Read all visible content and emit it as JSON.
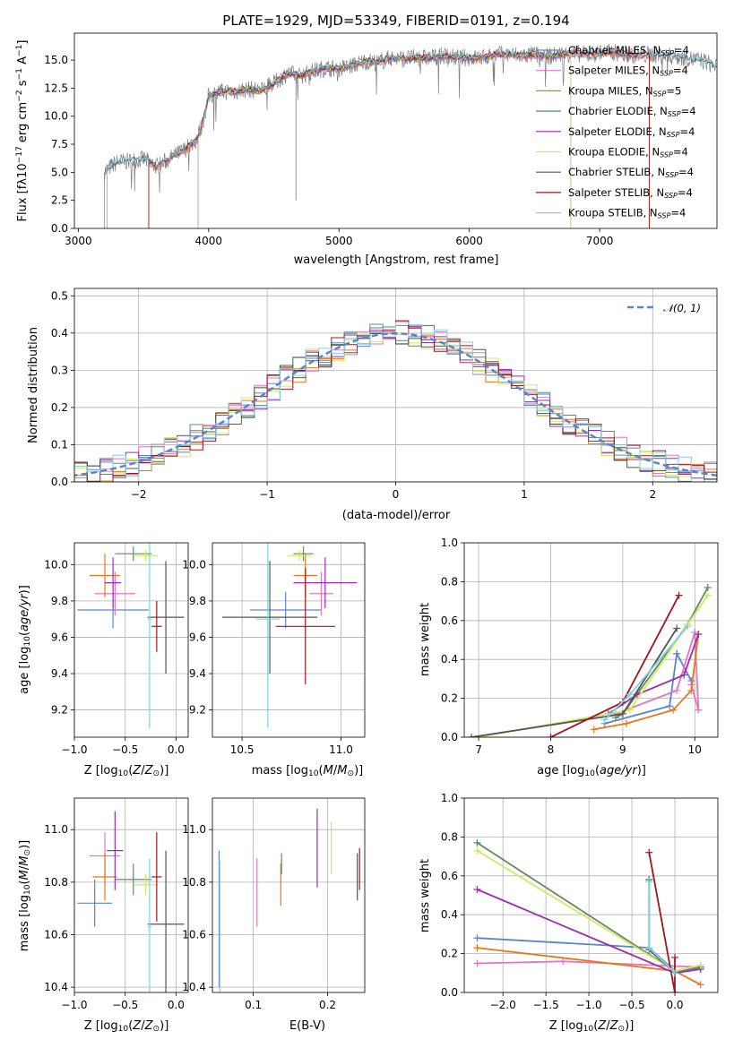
{
  "colors": {
    "chabrier_miles": "#5b84cf",
    "salpeter_miles": "#e377c2",
    "kroupa_miles": "#e5781b",
    "chabrier_elodie": "#5e8a68",
    "salpeter_elodie": "#9b2cb5",
    "kroupa_elodie": "#d4e85a",
    "chabrier_stelib": "#555555",
    "salpeter_stelib": "#a3141c",
    "kroupa_stelib": "#7ed3e3",
    "data_spectrum": "#808080"
  },
  "chart_data": [
    {
      "type": "line",
      "title": "PLATE=1929, MJD=53349, FIBERID=0191, z=0.194",
      "xlabel": "wavelength [Angstrom, rest frame]",
      "ylabel": "Flux [fλ10⁻¹⁷ erg cm⁻² s⁻¹ A⁻¹]",
      "xlim": [
        2970,
        7900
      ],
      "ylim": [
        0,
        17.4
      ],
      "xticks": [
        3000,
        4000,
        5000,
        6000,
        7000
      ],
      "yticks": [
        0.0,
        2.5,
        5.0,
        7.5,
        10.0,
        12.5,
        15.0
      ],
      "legend": "top-right",
      "continuum": {
        "x": [
          3200,
          3250,
          3300,
          3400,
          3500,
          3600,
          3700,
          3800,
          3900,
          3950,
          4000,
          4100,
          4200,
          4300,
          4400,
          4500,
          4600,
          4700,
          4800,
          4900,
          5000,
          5100,
          5200,
          5300,
          5400,
          5500,
          5600,
          5700,
          5800,
          5900,
          6000,
          6100,
          6200,
          6300,
          6400,
          6500,
          6600,
          6700,
          6800,
          6900,
          7000,
          7100,
          7200,
          7300,
          7400,
          7500,
          7600,
          7700,
          7800,
          7900
        ],
        "y": [
          5.0,
          5.5,
          5.9,
          6.0,
          6.2,
          5.5,
          6.2,
          6.9,
          7.8,
          9.2,
          11.8,
          12.2,
          12.2,
          12.4,
          12.3,
          12.9,
          13.8,
          13.6,
          14.0,
          14.3,
          14.2,
          14.5,
          14.9,
          14.8,
          15.2,
          15.1,
          15.2,
          15.2,
          15.4,
          15.2,
          15.2,
          15.2,
          15.5,
          15.5,
          15.4,
          15.5,
          15.3,
          15.5,
          15.6,
          15.5,
          15.6,
          15.7,
          15.5,
          15.4,
          15.5,
          15.4,
          15.3,
          15.1,
          14.9,
          14.4
        ]
      },
      "series": [
        {
          "name": "Chabrier MILES, NSSP=4",
          "start": 3540,
          "end": 7380
        },
        {
          "name": "Salpeter MILES, NSSP=4",
          "start": 3540,
          "end": 7380
        },
        {
          "name": "Kroupa MILES, NSSP=5",
          "start": 3540,
          "end": 7380
        },
        {
          "name": "Chabrier ELODIE, NSSP=4",
          "start": 3920,
          "end": 6780
        },
        {
          "name": "Salpeter ELODIE, NSSP=4",
          "start": 3920,
          "end": 6780
        },
        {
          "name": "Kroupa ELODIE, NSSP=4",
          "start": 3920,
          "end": 6780
        },
        {
          "name": "Chabrier STELIB, NSSP=4",
          "start": 3220,
          "end": 7900
        },
        {
          "name": "Salpeter STELIB, NSSP=4",
          "start": 3540,
          "end": 7380
        },
        {
          "name": "Kroupa STELIB, NSSP=4",
          "start": 3220,
          "end": 7900
        }
      ]
    },
    {
      "type": "line",
      "xlabel": "(data-model)/error",
      "ylabel": "Normed distribution",
      "xlim": [
        -2.5,
        2.5
      ],
      "ylim": [
        0,
        0.52
      ],
      "xticks": [
        -2,
        -1,
        0,
        1,
        2
      ],
      "yticks": [
        0.0,
        0.1,
        0.2,
        0.3,
        0.4,
        0.5
      ],
      "grid": true,
      "legend": "top-right",
      "gaussian_label": "𝒩(0, 1)"
    },
    {
      "type": "scatter",
      "xlabel": "Z [log10(Z/Z⊙)]",
      "ylabel": "age  [log10(age/yr)]",
      "xlim": [
        -1.0,
        0.12
      ],
      "ylim": [
        9.05,
        10.12
      ],
      "xticks": [
        -1.0,
        -0.5,
        0.0
      ],
      "yticks": [
        9.2,
        9.4,
        9.6,
        9.8,
        10.0
      ],
      "grid": true,
      "points": [
        {
          "x": -0.62,
          "y": 9.75,
          "xerr": 0.35,
          "yerr": 0.1
        },
        {
          "x": -0.6,
          "y": 9.84,
          "xerr": 0.2,
          "yerr": 0.12
        },
        {
          "x": -0.7,
          "y": 9.94,
          "xerr": 0.15,
          "yerr": 0.12
        },
        {
          "x": -0.42,
          "y": 10.06,
          "xerr": 0.18,
          "yerr": 0.04
        },
        {
          "x": -0.62,
          "y": 9.9,
          "xerr": 0.08,
          "yerr": 0.14
        },
        {
          "x": -0.3,
          "y": 10.05,
          "xerr": 0.12,
          "yerr": 0.03
        },
        {
          "x": -0.1,
          "y": 9.71,
          "xerr": 0.18,
          "yerr": 0.31
        },
        {
          "x": -0.19,
          "y": 9.66,
          "xerr": 0.05,
          "yerr": 0.14
        },
        {
          "x": -0.26,
          "y": 9.7,
          "xerr": 0.02,
          "yerr": 0.6
        }
      ]
    },
    {
      "type": "scatter",
      "xlabel": "mass [log10(M/M⊙)]",
      "ylabel": "",
      "xlim": [
        10.35,
        11.12
      ],
      "ylim": [
        9.05,
        10.12
      ],
      "xticks": [
        10.5,
        11.0
      ],
      "yticks": [
        9.2,
        9.4,
        9.6,
        9.8,
        10.0
      ],
      "grid": true,
      "points": [
        {
          "x": 10.72,
          "y": 9.75,
          "xerr": 0.18,
          "yerr": 0.1
        },
        {
          "x": 10.9,
          "y": 9.84,
          "xerr": 0.06,
          "yerr": 0.12
        },
        {
          "x": 10.82,
          "y": 9.94,
          "xerr": 0.06,
          "yerr": 0.12
        },
        {
          "x": 10.81,
          "y": 10.06,
          "xerr": 0.05,
          "yerr": 0.04
        },
        {
          "x": 10.92,
          "y": 9.9,
          "xerr": 0.16,
          "yerr": 0.14
        },
        {
          "x": 10.79,
          "y": 10.05,
          "xerr": 0.06,
          "yerr": 0.03
        },
        {
          "x": 10.64,
          "y": 9.71,
          "xerr": 0.24,
          "yerr": 0.31
        },
        {
          "x": 10.82,
          "y": 9.66,
          "xerr": 0.15,
          "yerr": 0.32
        },
        {
          "x": 10.63,
          "y": 9.7,
          "xerr": 0.06,
          "yerr": 0.6
        }
      ]
    },
    {
      "type": "line",
      "xlabel": "age  [log10(age/yr)]",
      "ylabel": "mass weight",
      "xlim": [
        6.8,
        10.32
      ],
      "ylim": [
        0,
        1.0
      ],
      "xticks": [
        7,
        8,
        9,
        10
      ],
      "yticks": [
        0.0,
        0.2,
        0.4,
        0.6,
        0.8,
        1.0
      ],
      "grid": true,
      "series": [
        {
          "name": "Chabrier MILES",
          "x": [
            8.75,
            9.65,
            9.75,
            9.95,
            9.75
          ],
          "y": [
            0.07,
            0.16,
            0.43,
            0.29,
            0.43
          ]
        },
        {
          "name": "Salpeter MILES",
          "x": [
            8.9,
            9.75,
            10.0,
            10.05,
            9.95
          ],
          "y": [
            0.12,
            0.24,
            0.54,
            0.14,
            0.27
          ]
        },
        {
          "name": "Kroupa MILES",
          "x": [
            8.6,
            9.05,
            9.7,
            9.95,
            10.05
          ],
          "y": [
            0.04,
            0.07,
            0.14,
            0.24,
            0.53
          ]
        },
        {
          "name": "Chabrier ELODIE",
          "x": [
            8.9,
            9.0,
            9.9,
            10.18
          ],
          "y": [
            0.1,
            0.12,
            0.58,
            0.77
          ]
        },
        {
          "name": "Salpeter ELODIE",
          "x": [
            8.8,
            9.2,
            9.85,
            10.05
          ],
          "y": [
            0.12,
            0.22,
            0.32,
            0.53
          ]
        },
        {
          "name": "Kroupa ELODIE",
          "x": [
            7.0,
            9.1,
            9.9,
            10.18
          ],
          "y": [
            0.0,
            0.14,
            0.58,
            0.73
          ]
        },
        {
          "name": "Chabrier STELIB",
          "x": [
            6.9,
            9.0,
            9.75
          ],
          "y": [
            0.0,
            0.12,
            0.56
          ]
        },
        {
          "name": "Salpeter STELIB",
          "x": [
            8.0,
            9.0,
            9.78
          ],
          "y": [
            0.0,
            0.18,
            0.73
          ]
        },
        {
          "name": "Kroupa STELIB",
          "x": [
            8.75,
            9.1,
            9.9
          ],
          "y": [
            0.09,
            0.22,
            0.57
          ]
        }
      ]
    },
    {
      "type": "scatter",
      "xlabel": "Z [log10(Z/Z⊙)]",
      "ylabel": "mass [log10(M/M⊙)]",
      "xlim": [
        -1.0,
        0.12
      ],
      "ylim": [
        10.38,
        11.12
      ],
      "xticks": [
        -1.0,
        -0.5,
        0.0
      ],
      "yticks": [
        10.4,
        10.6,
        10.8,
        11.0
      ],
      "grid": true,
      "points": [
        {
          "x": -0.8,
          "y": 10.72,
          "xerr": 0.17,
          "yerr": 0.09
        },
        {
          "x": -0.7,
          "y": 10.9,
          "xerr": 0.15,
          "yerr": 0.09
        },
        {
          "x": -0.7,
          "y": 10.82,
          "xerr": 0.12,
          "yerr": 0.09
        },
        {
          "x": -0.42,
          "y": 10.81,
          "xerr": 0.18,
          "yerr": 0.06
        },
        {
          "x": -0.6,
          "y": 10.92,
          "xerr": 0.08,
          "yerr": 0.15
        },
        {
          "x": -0.3,
          "y": 10.79,
          "xerr": 0.12,
          "yerr": 0.04
        },
        {
          "x": -0.1,
          "y": 10.64,
          "xerr": 0.18,
          "yerr": 0.28
        },
        {
          "x": -0.19,
          "y": 10.82,
          "xerr": 0.05,
          "yerr": 0.17
        },
        {
          "x": -0.26,
          "y": 10.63,
          "xerr": 0.02,
          "yerr": 0.26
        }
      ]
    },
    {
      "type": "scatter",
      "xlabel": "E(B-V)",
      "ylabel": "",
      "xlim": [
        0.045,
        0.25
      ],
      "ylim": [
        10.38,
        11.12
      ],
      "xticks": [
        0.1,
        0.2
      ],
      "yticks": [
        10.4,
        10.6,
        10.8,
        11.0
      ],
      "grid": true,
      "points": [
        {
          "x": 0.054,
          "y": 10.66,
          "yerr": 0.26
        },
        {
          "x": 0.105,
          "y": 10.76,
          "yerr": 0.13
        },
        {
          "x": 0.137,
          "y": 10.79,
          "yerr": 0.08
        },
        {
          "x": 0.138,
          "y": 10.87,
          "yerr": 0.04
        },
        {
          "x": 0.186,
          "y": 10.93,
          "yerr": 0.15
        },
        {
          "x": 0.205,
          "y": 10.93,
          "yerr": 0.1
        },
        {
          "x": 0.24,
          "y": 10.82,
          "yerr": 0.09
        },
        {
          "x": 0.243,
          "y": 10.85,
          "yerr": 0.08
        },
        {
          "x": 0.055,
          "y": 10.63,
          "yerr": 0.25
        }
      ]
    },
    {
      "type": "line",
      "xlabel": "Z [log10(Z/Z⊙)]",
      "ylabel": "mass weight",
      "xlim": [
        -2.45,
        0.5
      ],
      "ylim": [
        0,
        1.0
      ],
      "xticks": [
        -2.0,
        -1.5,
        -1.0,
        -0.5,
        0.0
      ],
      "yticks": [
        0.0,
        0.2,
        0.4,
        0.6,
        0.8,
        1.0
      ],
      "grid": true,
      "series": [
        {
          "name": "Chabrier MILES",
          "x": [
            -2.3,
            -0.3,
            0.0,
            0.3
          ],
          "y": [
            0.28,
            0.23,
            0.11,
            0.12
          ]
        },
        {
          "name": "Salpeter MILES",
          "x": [
            -2.3,
            -1.3,
            0.3
          ],
          "y": [
            0.15,
            0.16,
            0.13
          ]
        },
        {
          "name": "Kroupa MILES",
          "x": [
            -2.3,
            0.0,
            0.3
          ],
          "y": [
            0.23,
            0.11,
            0.04
          ]
        },
        {
          "name": "Chabrier ELODIE",
          "x": [
            -2.3,
            0.0,
            0.3
          ],
          "y": [
            0.77,
            0.11,
            0.13
          ]
        },
        {
          "name": "Salpeter ELODIE",
          "x": [
            -2.3,
            0.0,
            0.3
          ],
          "y": [
            0.53,
            0.1,
            0.12
          ]
        },
        {
          "name": "Kroupa ELODIE",
          "x": [
            -2.3,
            0.0,
            0.3
          ],
          "y": [
            0.73,
            0.11,
            0.14
          ]
        },
        {
          "name": "Chabrier STELIB",
          "x": [
            -0.3,
            -0.3,
            0.0
          ],
          "y": [
            0.58,
            0.22,
            0.1
          ]
        },
        {
          "name": "Salpeter STELIB",
          "x": [
            -0.3,
            0.0,
            0.0
          ],
          "y": [
            0.72,
            0.0,
            0.18
          ]
        },
        {
          "name": "Kroupa STELIB",
          "x": [
            -0.3,
            -0.3,
            0.0
          ],
          "y": [
            0.57,
            0.23,
            0.1
          ]
        }
      ]
    }
  ]
}
